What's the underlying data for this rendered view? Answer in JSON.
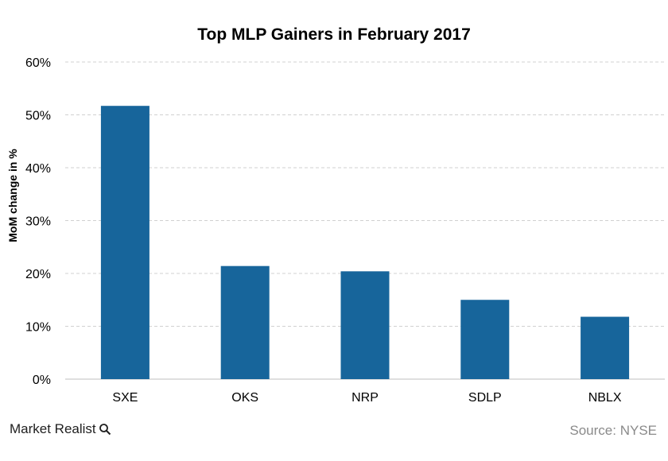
{
  "chart_data": {
    "type": "bar",
    "title": "Top MLP Gainers in February 2017",
    "xlabel": "",
    "ylabel": "MoM change in %",
    "categories": [
      "SXE",
      "OKS",
      "NRP",
      "SDLP",
      "NBLX"
    ],
    "values": [
      51.7,
      21.4,
      20.4,
      15.0,
      11.8
    ],
    "ylim": [
      0,
      60
    ],
    "yticks": [
      0,
      10,
      20,
      30,
      40,
      50,
      60
    ],
    "ytick_labels": [
      "0%",
      "10%",
      "20%",
      "30%",
      "40%",
      "50%",
      "60%"
    ],
    "grid": true,
    "bar_color": "#17659b"
  },
  "footer": {
    "logo_text": "Market Realist",
    "source": "Source: NYSE"
  }
}
